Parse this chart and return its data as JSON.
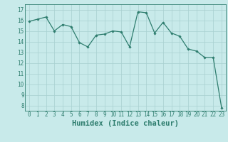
{
  "xlabel": "Humidex (Indice chaleur)",
  "ylabel": "",
  "x": [
    0,
    1,
    2,
    3,
    4,
    5,
    6,
    7,
    8,
    9,
    10,
    11,
    12,
    13,
    14,
    15,
    16,
    17,
    18,
    19,
    20,
    21,
    22,
    23
  ],
  "y": [
    15.9,
    16.1,
    16.3,
    15.0,
    15.6,
    15.4,
    13.9,
    13.5,
    14.6,
    14.7,
    15.0,
    14.9,
    13.5,
    16.8,
    16.7,
    14.8,
    15.8,
    14.8,
    14.5,
    13.3,
    13.1,
    12.5,
    12.5,
    7.8
  ],
  "line_color": "#2e7d6e",
  "marker": "D",
  "marker_size": 1.8,
  "line_width": 0.9,
  "background_color": "#c8eaea",
  "grid_color": "#a8d0d0",
  "xlim": [
    -0.5,
    23.5
  ],
  "ylim": [
    7.5,
    17.5
  ],
  "yticks": [
    8,
    9,
    10,
    11,
    12,
    13,
    14,
    15,
    16,
    17
  ],
  "xticks": [
    0,
    1,
    2,
    3,
    4,
    5,
    6,
    7,
    8,
    9,
    10,
    11,
    12,
    13,
    14,
    15,
    16,
    17,
    18,
    19,
    20,
    21,
    22,
    23
  ],
  "tick_label_fontsize": 5.5,
  "xlabel_fontsize": 7.5,
  "tick_color": "#2e7d6e",
  "axis_color": "#2e7d6e"
}
